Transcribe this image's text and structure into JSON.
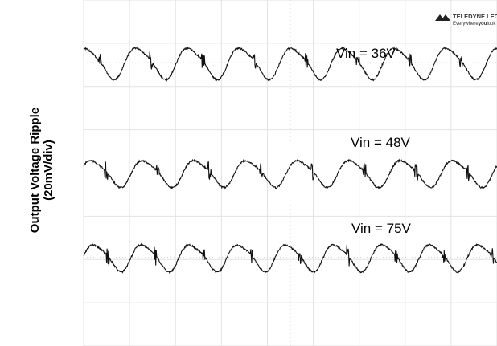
{
  "logo": {
    "brand": "TELEDYNE LECROY",
    "tagline_prefix": "Everywhere",
    "tagline_bold": "you",
    "tagline_suffix": "look"
  },
  "chart_data": {
    "type": "line",
    "title": "",
    "ylabel_lines": [
      "Output Voltage Ripple",
      "(20mV/div)"
    ],
    "xlabel": "",
    "grid": true,
    "grid_divisions": {
      "x": 9,
      "y": 8
    },
    "ylim_divisions": [
      -4,
      4
    ],
    "series": [
      {
        "name": "Vin = 36V",
        "offset_div": 2.55,
        "amplitude_div": 0.35,
        "cycles": 8.0,
        "phase": 1.2
      },
      {
        "name": "Vin = 48V",
        "offset_div": 0.0,
        "amplitude_div": 0.3,
        "cycles": 8.0,
        "phase": 0.4
      },
      {
        "name": "Vin = 75V",
        "offset_div": -1.95,
        "amplitude_div": 0.3,
        "cycles": 8.6,
        "phase": 0.0
      }
    ]
  }
}
